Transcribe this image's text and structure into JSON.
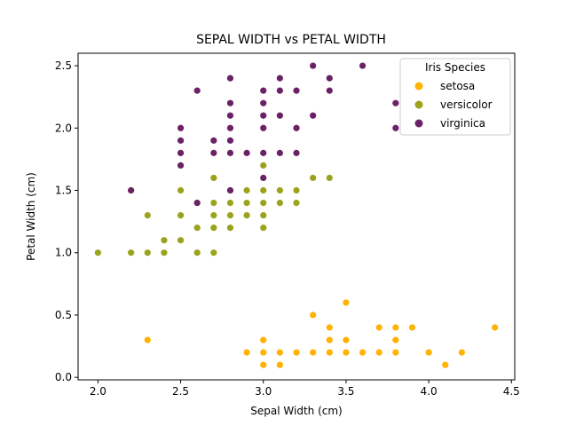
{
  "chart_data": {
    "type": "scatter",
    "title": "SEPAL WIDTH vs PETAL WIDTH",
    "xlabel": "Sepal Width (cm)",
    "ylabel": "Petal Width (cm)",
    "xlim": [
      1.88,
      4.52
    ],
    "ylim": [
      -0.02,
      2.6
    ],
    "xticks": [
      "2.0",
      "2.5",
      "3.0",
      "3.5",
      "4.0",
      "4.5"
    ],
    "yticks": [
      "0.0",
      "0.5",
      "1.0",
      "1.5",
      "2.0",
      "2.5"
    ],
    "grid": false,
    "legend": {
      "title": "Iris Species",
      "position": "top-right"
    },
    "series": [
      {
        "name": "setosa",
        "color": "#FFB300",
        "points": [
          [
            2.3,
            0.3
          ],
          [
            2.9,
            0.2
          ],
          [
            3.0,
            0.1
          ],
          [
            3.0,
            0.2
          ],
          [
            3.0,
            0.3
          ],
          [
            3.1,
            0.1
          ],
          [
            3.1,
            0.2
          ],
          [
            3.2,
            0.2
          ],
          [
            3.3,
            0.2
          ],
          [
            3.3,
            0.5
          ],
          [
            3.4,
            0.2
          ],
          [
            3.4,
            0.3
          ],
          [
            3.4,
            0.4
          ],
          [
            3.5,
            0.2
          ],
          [
            3.5,
            0.3
          ],
          [
            3.5,
            0.6
          ],
          [
            3.6,
            0.2
          ],
          [
            3.7,
            0.2
          ],
          [
            3.7,
            0.4
          ],
          [
            3.8,
            0.2
          ],
          [
            3.8,
            0.3
          ],
          [
            3.8,
            0.4
          ],
          [
            3.9,
            0.4
          ],
          [
            4.0,
            0.2
          ],
          [
            4.1,
            0.1
          ],
          [
            4.2,
            0.2
          ],
          [
            4.4,
            0.4
          ]
        ]
      },
      {
        "name": "versicolor",
        "color": "#9BA31C",
        "points": [
          [
            2.0,
            1.0
          ],
          [
            2.2,
            1.0
          ],
          [
            2.2,
            1.5
          ],
          [
            2.3,
            1.0
          ],
          [
            2.3,
            1.3
          ],
          [
            2.4,
            1.0
          ],
          [
            2.4,
            1.1
          ],
          [
            2.5,
            1.1
          ],
          [
            2.5,
            1.3
          ],
          [
            2.5,
            1.5
          ],
          [
            2.6,
            1.0
          ],
          [
            2.6,
            1.2
          ],
          [
            2.6,
            1.4
          ],
          [
            2.7,
            1.0
          ],
          [
            2.7,
            1.2
          ],
          [
            2.7,
            1.3
          ],
          [
            2.7,
            1.4
          ],
          [
            2.7,
            1.6
          ],
          [
            2.8,
            1.2
          ],
          [
            2.8,
            1.3
          ],
          [
            2.8,
            1.4
          ],
          [
            2.8,
            1.5
          ],
          [
            2.9,
            1.3
          ],
          [
            2.9,
            1.4
          ],
          [
            2.9,
            1.5
          ],
          [
            3.0,
            1.2
          ],
          [
            3.0,
            1.3
          ],
          [
            3.0,
            1.4
          ],
          [
            3.0,
            1.5
          ],
          [
            3.0,
            1.7
          ],
          [
            3.1,
            1.4
          ],
          [
            3.1,
            1.5
          ],
          [
            3.2,
            1.4
          ],
          [
            3.2,
            1.5
          ],
          [
            3.3,
            1.6
          ],
          [
            3.4,
            1.6
          ]
        ]
      },
      {
        "name": "virginica",
        "color": "#6B2166",
        "points": [
          [
            2.2,
            1.5
          ],
          [
            2.5,
            1.7
          ],
          [
            2.5,
            1.8
          ],
          [
            2.5,
            1.9
          ],
          [
            2.5,
            2.0
          ],
          [
            2.6,
            1.4
          ],
          [
            2.6,
            2.3
          ],
          [
            2.7,
            1.8
          ],
          [
            2.7,
            1.9
          ],
          [
            2.8,
            1.5
          ],
          [
            2.8,
            1.8
          ],
          [
            2.8,
            1.9
          ],
          [
            2.8,
            2.0
          ],
          [
            2.8,
            2.1
          ],
          [
            2.8,
            2.2
          ],
          [
            2.8,
            2.4
          ],
          [
            2.9,
            1.8
          ],
          [
            3.0,
            1.6
          ],
          [
            3.0,
            1.8
          ],
          [
            3.0,
            2.0
          ],
          [
            3.0,
            2.1
          ],
          [
            3.0,
            2.2
          ],
          [
            3.0,
            2.3
          ],
          [
            3.1,
            1.8
          ],
          [
            3.1,
            2.1
          ],
          [
            3.1,
            2.3
          ],
          [
            3.1,
            2.4
          ],
          [
            3.2,
            1.8
          ],
          [
            3.2,
            2.0
          ],
          [
            3.2,
            2.3
          ],
          [
            3.3,
            2.1
          ],
          [
            3.3,
            2.5
          ],
          [
            3.4,
            2.3
          ],
          [
            3.4,
            2.4
          ],
          [
            3.6,
            2.5
          ],
          [
            3.8,
            2.0
          ],
          [
            3.8,
            2.2
          ]
        ]
      }
    ]
  }
}
